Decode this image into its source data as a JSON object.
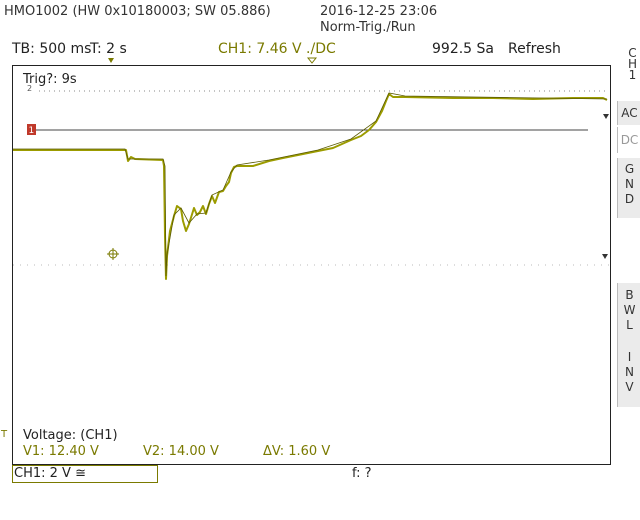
{
  "header": {
    "device": "HMO1002 (HW 0x10180003; SW 05.886)",
    "datetime": "2016-12-25 23:06",
    "mode": "Norm-Trig./Run"
  },
  "status": {
    "timebase": "TB: 500 ms",
    "trigger_time": "T: 2 s",
    "channel_trigger": "CH1: 7.46 V ./DC",
    "sample_rate": "992.5 Sa",
    "refresh": "Refresh"
  },
  "sidebar": {
    "channel": [
      "C",
      "H",
      "1"
    ],
    "ac": "AC",
    "dc": "DC",
    "gnd": [
      "G",
      "N",
      "D"
    ],
    "bwl": [
      "B",
      "W",
      "L"
    ],
    "inv": [
      "I",
      "N",
      "V"
    ]
  },
  "screen": {
    "trig_note": "Trig?: 9s",
    "marker_2": "2",
    "marker_t": "T",
    "ground_marker": "1",
    "cursor_panel": {
      "title": "Voltage: (CH1)",
      "v1": "V1: 12.40 V",
      "v2": "V2: 14.00 V",
      "dv": "ΔV: 1.60 V"
    }
  },
  "footer": {
    "ch1_scale": "CH1: 2 V ≅",
    "freq": "f: ?"
  },
  "colors": {
    "trace": "#9c9c00",
    "trace_dark": "#5a5a00",
    "ref_line": "#444444",
    "marker": "#c0392b",
    "text_channel": "#7a7a00"
  }
}
